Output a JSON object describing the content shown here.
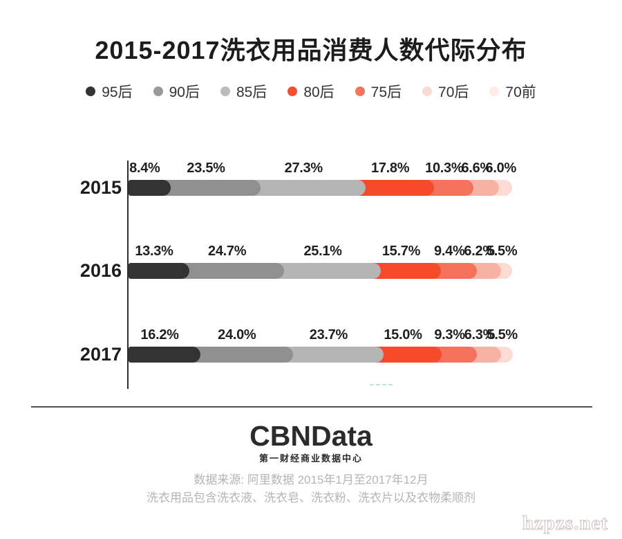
{
  "title": "2015-2017洗衣用品消费人数代际分布",
  "chart_data": {
    "type": "bar",
    "orientation": "horizontal",
    "stacked": true,
    "title": "2015-2017洗衣用品消费人数代际分布",
    "categories": [
      "2015",
      "2016",
      "2017"
    ],
    "series": [
      {
        "name": "95后",
        "color": "#333333",
        "dot_color": "#333333",
        "values": [
          8.4,
          13.3,
          16.2
        ]
      },
      {
        "name": "90后",
        "color": "#909090",
        "dot_color": "#999999",
        "values": [
          23.5,
          24.7,
          24.0
        ]
      },
      {
        "name": "85后",
        "color": "#b5b5b5",
        "dot_color": "#bbbbbb",
        "values": [
          27.3,
          25.1,
          23.7
        ]
      },
      {
        "name": "80后",
        "color": "#f64b2b",
        "dot_color": "#f05033",
        "values": [
          17.8,
          15.7,
          15.0
        ]
      },
      {
        "name": "75后",
        "color": "#f4715b",
        "dot_color": "#f3745f",
        "values": [
          10.3,
          9.4,
          9.3
        ]
      },
      {
        "name": "70后",
        "color": "#f8b2a3",
        "dot_color": "#fadbd4",
        "values": [
          6.6,
          6.2,
          6.3
        ]
      },
      {
        "name": "70前",
        "color": "#fbdbd4",
        "dot_color": "#fdece8",
        "values": [
          6.0,
          5.5,
          5.5
        ]
      }
    ],
    "value_label_format": "{value}%",
    "xlim": [
      0,
      100
    ],
    "legend_position": "top",
    "grid": false
  },
  "footer": {
    "logo": "CBNData",
    "logo_subtitle": "第一财经商业数据中心",
    "source_line1": "数据来源: 阿里数据  2015年1月至2017年12月",
    "source_line2": "洗衣用品包含洗衣液、洗衣皂、洗衣粉、洗衣片以及衣物柔顺剂"
  },
  "watermark": "hzpzs.net"
}
